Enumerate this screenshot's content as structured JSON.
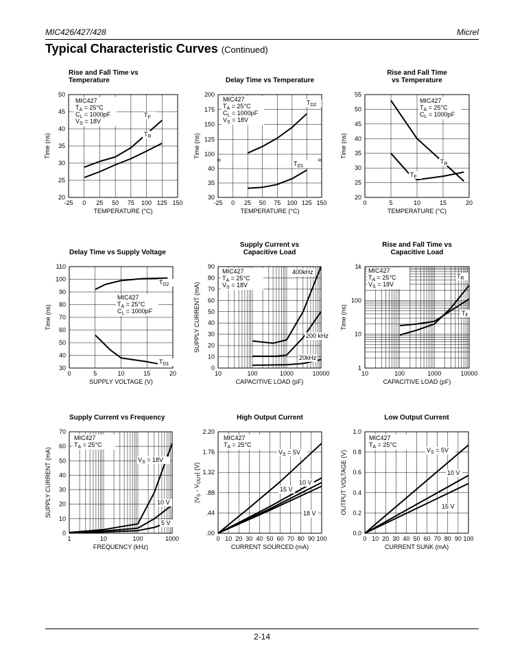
{
  "header": {
    "part_numbers": "MIC426/427/428",
    "brand": "Micrel"
  },
  "section": {
    "title": "Typical Characteristic Curves",
    "subtitle": "(Continued)"
  },
  "footer": {
    "page_number": "2-14"
  },
  "chart_data": [
    {
      "type": "line",
      "title": [
        "Rise and Fall Time vs",
        "Temperature"
      ],
      "xlabel": "TEMPERATURE (°C)",
      "ylabel": "Time (ns)",
      "xlim": [
        -25,
        150
      ],
      "ylim": [
        20,
        50
      ],
      "xticks": [
        -25,
        0,
        25,
        50,
        75,
        100,
        125,
        150
      ],
      "yticks": [
        20,
        25,
        30,
        35,
        40,
        45,
        50
      ],
      "grid": true,
      "conditions": [
        "MIC427",
        "T_A = 25°C",
        "C_L = 1000pF",
        "V_S = 18V"
      ],
      "series": [
        {
          "name": "T_F",
          "x": [
            0,
            25,
            50,
            75,
            100,
            125
          ],
          "y": [
            28.8,
            30.5,
            31.8,
            34.5,
            38.5,
            42.5
          ]
        },
        {
          "name": "T_R",
          "x": [
            0,
            25,
            50,
            75,
            100,
            125
          ],
          "y": [
            25.8,
            27.5,
            29.5,
            31.3,
            33.5,
            35.8
          ]
        }
      ]
    },
    {
      "type": "line",
      "title": [
        "Delay Time vs Temperature"
      ],
      "xlabel": "TEMPERATURE (°C)",
      "ylabel": "Time (ns)",
      "xlim": [
        -25,
        150
      ],
      "y_axis": "broken scale: 30–40 lower section, 100–200 upper section",
      "xticks": [
        -25,
        0,
        25,
        50,
        75,
        100,
        125,
        150
      ],
      "yticks_upper": [
        100,
        125,
        150,
        175,
        200
      ],
      "yticks_lower": [
        30,
        35,
        40
      ],
      "grid": true,
      "conditions": [
        "MIC427",
        "T_A = 25°C",
        "C_L = 1000pF",
        "V_S = 18V"
      ],
      "series": [
        {
          "name": "T_D2",
          "x": [
            25,
            50,
            75,
            100,
            125
          ],
          "y": [
            102,
            113,
            127,
            145,
            168
          ],
          "scale": "upper"
        },
        {
          "name": "T_D1",
          "x": [
            25,
            50,
            75,
            100,
            125
          ],
          "y": [
            33.2,
            33.5,
            34.5,
            36.5,
            39.5
          ],
          "scale": "lower"
        }
      ]
    },
    {
      "type": "line",
      "title": [
        "Rise and Fall Time",
        "vs Temperature"
      ],
      "xlabel": "TEMPERATURE (°C)",
      "ylabel": "Time (ns)",
      "xlim": [
        0,
        20
      ],
      "ylim": [
        20,
        55
      ],
      "xticks": [
        0,
        5,
        10,
        15,
        20
      ],
      "yticks": [
        20,
        25,
        30,
        35,
        40,
        45,
        50,
        55
      ],
      "grid": true,
      "conditions": [
        "MIC427",
        "T_A = 25°C",
        "C_L = 1000pF"
      ],
      "series": [
        {
          "name": "T_R",
          "x": [
            5,
            10,
            15,
            19
          ],
          "y": [
            53,
            40,
            32,
            25.5
          ]
        },
        {
          "name": "T_F",
          "x": [
            5,
            8.5,
            10,
            15,
            19
          ],
          "y": [
            35,
            28,
            26,
            27.2,
            28.6
          ]
        }
      ]
    },
    {
      "type": "line",
      "title": [
        "Delay Time vs Supply Voltage"
      ],
      "xlabel": "SUPPLY VOLTAGE (V)",
      "ylabel": "Time (ns)",
      "xlim": [
        0,
        20
      ],
      "ylim": [
        30,
        110
      ],
      "xticks": [
        0,
        5,
        10,
        15,
        20
      ],
      "yticks": [
        30,
        40,
        50,
        60,
        70,
        80,
        90,
        100,
        110
      ],
      "grid": true,
      "conditions": [
        "MIC427",
        "T_A = 25°C",
        "C_L = 1000pF"
      ],
      "series": [
        {
          "name": "T_D2",
          "x": [
            5,
            7,
            10,
            14,
            19
          ],
          "y": [
            92,
            96,
            99,
            100.5,
            101
          ]
        },
        {
          "name": "T_D1",
          "x": [
            5,
            8,
            10,
            15,
            19
          ],
          "y": [
            56,
            44,
            38,
            35,
            32
          ]
        }
      ]
    },
    {
      "type": "line",
      "title": [
        "Supply Current vs",
        "Capacitive Load"
      ],
      "xlabel": "CAPACITIVE LOAD (pF)",
      "ylabel": "SUPPLY CURRENT (mA)",
      "x_scale": "log",
      "xlim": [
        10,
        10000
      ],
      "ylim": [
        0,
        90
      ],
      "xticks": [
        10,
        100,
        1000,
        10000
      ],
      "yticks": [
        0,
        10,
        20,
        30,
        40,
        50,
        60,
        70,
        80,
        90
      ],
      "grid": true,
      "conditions": [
        "MIC427",
        "T_A = 25°C",
        "V_S = 18V"
      ],
      "series": [
        {
          "name": "400kHz",
          "x": [
            100,
            400,
            1000,
            3000,
            10000
          ],
          "y": [
            24,
            22,
            25,
            50,
            90
          ]
        },
        {
          "name": "200 kHz",
          "x": [
            100,
            500,
            1000,
            3000,
            10000
          ],
          "y": [
            10.5,
            10.5,
            11.5,
            27,
            50
          ]
        },
        {
          "name": "20kHz",
          "x": [
            100,
            1000,
            3000,
            10000
          ],
          "y": [
            2.5,
            3,
            4,
            7.5
          ]
        }
      ]
    },
    {
      "type": "line",
      "title": [
        "Rise and Fall Time vs",
        "Capacitive Load"
      ],
      "xlabel": "CAPACITIVE LOAD (pF)",
      "ylabel": "Time (ns)",
      "x_scale": "log",
      "y_scale": "log",
      "xlim": [
        10,
        10000
      ],
      "ylim": [
        1,
        1000
      ],
      "xticks": [
        10,
        100,
        1000,
        10000
      ],
      "yticks": [
        1,
        10,
        100,
        "1k"
      ],
      "grid": true,
      "conditions": [
        "MIC427",
        "T_A = 25°C",
        "V_S = 18V"
      ],
      "series": [
        {
          "name": "T_R",
          "x": [
            100,
            300,
            1000,
            3000,
            10000
          ],
          "y": [
            9.5,
            13,
            20,
            60,
            280
          ]
        },
        {
          "name": "T_F",
          "x": [
            100,
            300,
            1000,
            3000,
            10000
          ],
          "y": [
            18,
            20,
            24,
            50,
            110
          ]
        }
      ]
    },
    {
      "type": "line",
      "title": [
        "Supply Current vs Frequency"
      ],
      "xlabel": "FREQUENCY (kHz)",
      "ylabel": "SUPPLY CURRENT (mA)",
      "x_scale": "log",
      "xlim": [
        1,
        1000
      ],
      "ylim": [
        0,
        70
      ],
      "xticks": [
        1,
        10,
        100,
        1000
      ],
      "yticks": [
        0,
        10,
        20,
        30,
        40,
        50,
        60,
        70
      ],
      "grid": true,
      "conditions": [
        "MIC427",
        "T_A = 25°C"
      ],
      "series": [
        {
          "name": "V_S = 18V",
          "x": [
            1,
            10,
            100,
            300,
            1000
          ],
          "y": [
            0.5,
            2.5,
            6.5,
            28,
            62
          ]
        },
        {
          "name": "10 V",
          "x": [
            1,
            10,
            100,
            300,
            1000
          ],
          "y": [
            0.3,
            1.5,
            3.5,
            10,
            19.5
          ]
        },
        {
          "name": "5 V",
          "x": [
            1,
            10,
            100,
            300,
            1000
          ],
          "y": [
            0.2,
            0.8,
            1.8,
            4,
            8.5
          ]
        }
      ]
    },
    {
      "type": "line",
      "title": [
        "High Output Current"
      ],
      "xlabel": "CURRENT SOURCED (mA)",
      "ylabel": "|V_S - V_OUT| (V)",
      "xlim": [
        0,
        100
      ],
      "ylim": [
        0,
        2.2
      ],
      "xticks": [
        0,
        10,
        20,
        30,
        40,
        50,
        60,
        70,
        80,
        90,
        100
      ],
      "yticks": [
        ".00",
        ".44",
        ".88",
        "1.32",
        "1.76",
        "2.20"
      ],
      "grid": true,
      "conditions": [
        "MIC427",
        "T_A = 25°C"
      ],
      "series": [
        {
          "name": "V_S = 5V",
          "x": [
            0,
            30,
            60,
            100
          ],
          "y": [
            0,
            0.55,
            1.12,
            1.95
          ]
        },
        {
          "name": "10 V",
          "x": [
            0,
            50,
            100
          ],
          "y": [
            0,
            0.58,
            1.2
          ]
        },
        {
          "name": "15 V",
          "x": [
            0,
            50,
            100
          ],
          "y": [
            0,
            0.53,
            1.1
          ]
        },
        {
          "name": "18 V",
          "x": [
            0,
            50,
            100
          ],
          "y": [
            0,
            0.5,
            1.02
          ]
        }
      ]
    },
    {
      "type": "line",
      "title": [
        "Low Output Current"
      ],
      "xlabel": "CURRENT SUNK (mA)",
      "ylabel": "OUTPUT VOLTAGE (V)",
      "xlim": [
        0,
        100
      ],
      "ylim": [
        0,
        1.0
      ],
      "xticks": [
        0,
        10,
        20,
        30,
        40,
        50,
        60,
        70,
        80,
        90,
        100
      ],
      "yticks": [
        "0.0",
        "0.2",
        "0.4",
        "0.6",
        "0.8",
        "1.0"
      ],
      "grid": true,
      "conditions": [
        "MIC427",
        "T_A = 25°C"
      ],
      "series": [
        {
          "name": "V_S = 5V",
          "x": [
            0,
            100
          ],
          "y": [
            0,
            0.87
          ]
        },
        {
          "name": "10 V",
          "x": [
            0,
            100
          ],
          "y": [
            0,
            0.57
          ]
        },
        {
          "name": "15 V",
          "x": [
            0,
            100
          ],
          "y": [
            0,
            0.49
          ]
        }
      ]
    }
  ]
}
